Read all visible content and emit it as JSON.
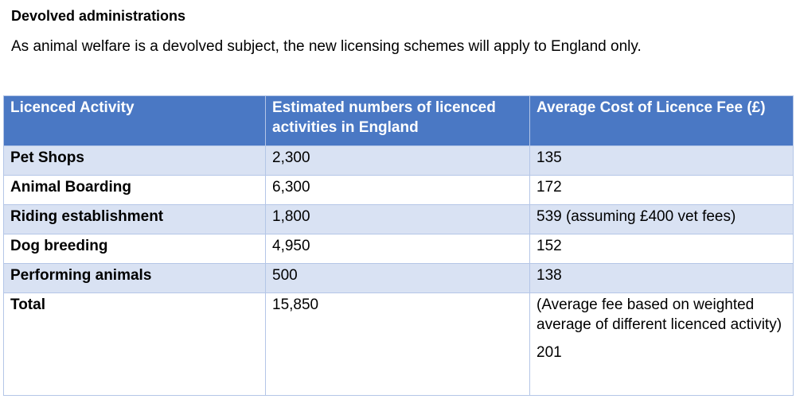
{
  "heading": "Devolved administrations",
  "intro": "As animal welfare is a devolved subject, the new licensing schemes will apply to England only.",
  "table": {
    "header": [
      "Licenced Activity",
      "Estimated numbers of licenced activities in England",
      "Average Cost of Licence Fee (£)"
    ],
    "rows": [
      [
        "Pet Shops",
        "2,300",
        "135"
      ],
      [
        "Animal Boarding",
        "6,300",
        "172"
      ],
      [
        "Riding establishment",
        "1,800",
        "539 (assuming £400 vet fees)"
      ],
      [
        "Dog breeding",
        "4,950",
        "152"
      ],
      [
        "Performing animals",
        "500",
        "138"
      ]
    ],
    "total": {
      "label": "Total",
      "count": "15,850",
      "fee_note": "(Average fee based on weighted average of different licenced activity)",
      "fee": "201"
    }
  }
}
